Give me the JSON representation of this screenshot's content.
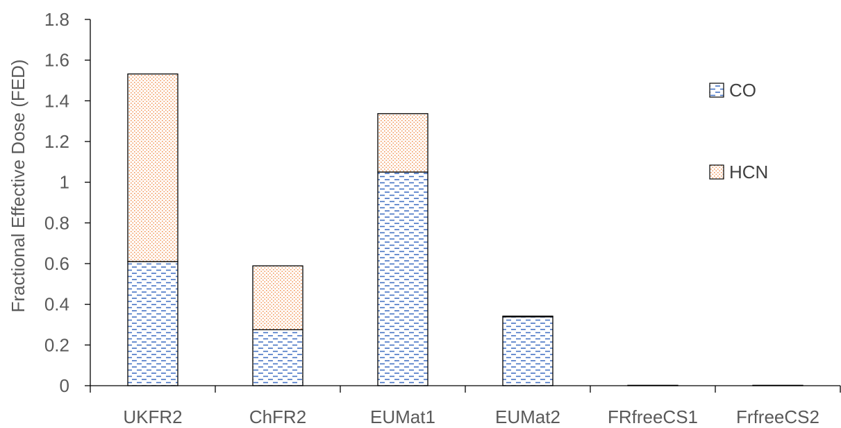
{
  "chart_data": {
    "type": "bar",
    "stacked": true,
    "categories": [
      "UKFR2",
      "ChFR2",
      "EUMat1",
      "EUMat2",
      "FRfreeCS1",
      "FrfreeCS2"
    ],
    "series": [
      {
        "name": "CO",
        "values": [
          0.61,
          0.275,
          1.05,
          0.338,
          0.002,
          0.002
        ],
        "color": "#4472c4",
        "pattern": "dashed-horizontal"
      },
      {
        "name": "HCN",
        "values": [
          0.922,
          0.314,
          0.287,
          0.004,
          0.0,
          0.0
        ],
        "color": "#ed7d31",
        "pattern": "dotted"
      }
    ],
    "ylabel": "Fractional Effective Dose (FED)",
    "xlabel": "",
    "title": "",
    "ylim": [
      0,
      1.8
    ],
    "yticks": [
      "0",
      "0.2",
      "0.4",
      "0.6",
      "0.8",
      "1",
      "1.2",
      "1.4",
      "1.6",
      "1.8"
    ],
    "grid": false,
    "legend_position": "right"
  }
}
